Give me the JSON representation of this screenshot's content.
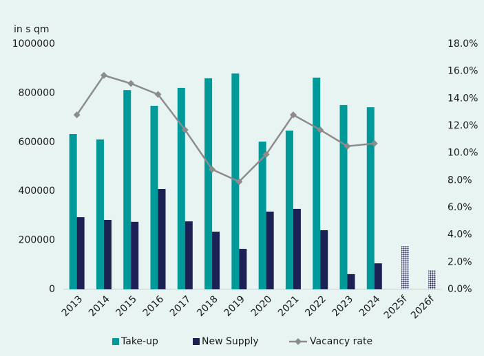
{
  "chart_data": {
    "type": "bar_line",
    "y_axis_label": "in s qm",
    "categories": [
      "2013",
      "2014",
      "2015",
      "2016",
      "2017",
      "2018",
      "2019",
      "2020",
      "2021",
      "2022",
      "2023",
      "2024",
      "2025f",
      "2026f"
    ],
    "series": [
      {
        "name": "Take-up",
        "color": "#00999a",
        "values": [
          633000,
          611000,
          812000,
          748000,
          821000,
          860000,
          880000,
          602000,
          647000,
          863000,
          751000,
          742000,
          null,
          null
        ]
      },
      {
        "name": "New Supply",
        "color": "#1b2154",
        "hatched_categories": [
          "2025f",
          "2026f"
        ],
        "values": [
          294000,
          283000,
          275000,
          409000,
          277000,
          235000,
          165000,
          317000,
          328000,
          241000,
          62000,
          106000,
          176000,
          78000
        ]
      },
      {
        "name": "Vacancy rate",
        "color": "#8c8c8c",
        "axis": "y2",
        "values": [
          12.8,
          15.7,
          15.1,
          14.3,
          11.7,
          8.8,
          7.9,
          9.9,
          12.8,
          11.7,
          10.5,
          10.7,
          null,
          null
        ]
      }
    ],
    "ylim": [
      0,
      1000000
    ],
    "yticks": [
      0,
      200000,
      400000,
      600000,
      800000,
      1000000
    ],
    "y2lim": [
      0,
      18
    ],
    "y2ticks": [
      {
        "value": 0,
        "label": "0.0%"
      },
      {
        "value": 2,
        "label": "2.0%"
      },
      {
        "value": 4,
        "label": "4.0%"
      },
      {
        "value": 6,
        "label": "6.0%"
      },
      {
        "value": 8,
        "label": "8.0%"
      },
      {
        "value": 10,
        "label": "10.0%"
      },
      {
        "value": 12,
        "label": "12.0%"
      },
      {
        "value": 14,
        "label": "14.0%"
      },
      {
        "value": 16,
        "label": "16.0%"
      },
      {
        "value": 18,
        "label": "18.0%"
      }
    ],
    "grid": false,
    "legend": "bottom"
  }
}
